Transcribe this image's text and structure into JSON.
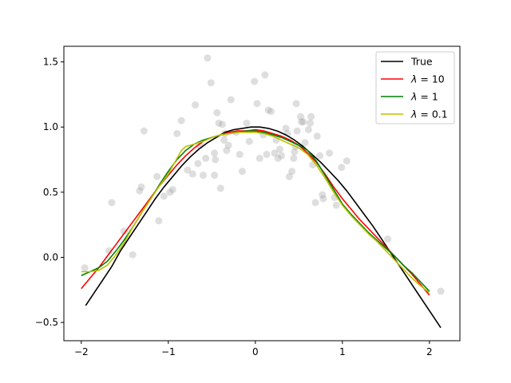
{
  "chart_data": {
    "type": "line",
    "title": "",
    "xlabel": "",
    "ylabel": "",
    "xlim": [
      -2.2,
      2.35
    ],
    "ylim": [
      -0.64,
      1.62
    ],
    "xticks": [
      -2,
      -1,
      0,
      1,
      2
    ],
    "xtick_labels": [
      "−2",
      "−1",
      "0",
      "1",
      "2"
    ],
    "yticks": [
      -0.5,
      0.0,
      0.5,
      1.0,
      1.5
    ],
    "ytick_labels": [
      "−0.5",
      "0.0",
      "0.5",
      "1.0",
      "1.5"
    ],
    "grid": false,
    "legend": {
      "position": "top-right"
    },
    "scatter": {
      "color": "#a0a0a0",
      "opacity": 0.35,
      "x": [
        2.13,
        1.52,
        1.05,
        0.99,
        0.93,
        0.91,
        0.78,
        0.77,
        0.74,
        0.71,
        0.69,
        0.66,
        0.64,
        0.63,
        0.61,
        0.55,
        0.53,
        0.52,
        0.48,
        0.47,
        0.46,
        0.45,
        0.44,
        0.42,
        0.39,
        0.37,
        0.35,
        0.3,
        0.28,
        0.26,
        0.24,
        0.22,
        0.18,
        0.15,
        0.13,
        0.11,
        0.09,
        0.05,
        0.02,
        -0.01,
        -0.07,
        -0.1,
        -0.15,
        -0.18,
        -0.22,
        -0.28,
        -0.31,
        -0.33,
        -0.35,
        -0.36,
        -0.38,
        -0.4,
        -0.42,
        -0.44,
        -0.46,
        -0.47,
        -0.51,
        -0.55,
        -0.64,
        -0.66,
        -0.72,
        -0.78,
        -0.85,
        -0.9,
        -0.98,
        -1.05,
        -1.13,
        -1.28,
        -1.31,
        -1.33,
        -1.41,
        -1.51,
        -1.65,
        -1.68,
        -1.96
      ],
      "y": [
        -0.26,
        0.14,
        0.74,
        0.69,
        0.4,
        0.46,
        0.45,
        0.48,
        0.78,
        0.93,
        0.42,
        0.71,
        1.08,
        1.03,
        0.98,
        1.04,
        1.04,
        1.08,
        0.97,
        1.18,
        0.85,
        0.81,
        0.76,
        0.66,
        0.62,
        0.95,
        0.99,
        0.78,
        0.83,
        0.76,
        0.9,
        0.8,
        1.12,
        1.13,
        0.79,
        1.4,
        0.94,
        0.76,
        1.18,
        1.35,
        0.89,
        1.03,
        0.66,
        0.79,
        0.96,
        1.21,
        0.86,
        0.82,
        0.95,
        0.9,
        1.02,
        0.53,
        1.03,
        1.11,
        0.75,
        0.63,
        1.34,
        1.53,
        0.86,
        0.72,
        0.64,
        0.67,
        1.05,
        0.95,
        0.5,
        0.47,
        0.62,
        0.97,
        0.54,
        0.51,
        0.02,
        0.2,
        0.42,
        0.05,
        -0.08
      ],
      "x_extra": [
        -0.57,
        -0.69,
        -0.6,
        -1.11,
        -0.95,
        -0.47,
        0.57,
        0.85
      ],
      "y_extra": [
        0.76,
        1.17,
        0.63,
        0.28,
        0.52,
        0.8,
        0.88,
        0.8
      ]
    },
    "series": [
      {
        "name": "True",
        "color": "#000000",
        "x": [
          -1.95,
          -1.85,
          -1.75,
          -1.65,
          -1.55,
          -1.45,
          -1.35,
          -1.25,
          -1.15,
          -1.05,
          -0.95,
          -0.85,
          -0.75,
          -0.65,
          -0.55,
          -0.45,
          -0.35,
          -0.25,
          -0.15,
          -0.05,
          0.0,
          0.05,
          0.15,
          0.25,
          0.35,
          0.45,
          0.55,
          0.65,
          0.75,
          0.85,
          0.95,
          1.05,
          1.15,
          1.25,
          1.35,
          1.45,
          1.55,
          1.65,
          1.75,
          1.85,
          1.95,
          2.05,
          2.13
        ],
        "y": [
          -0.37,
          -0.27,
          -0.17,
          -0.07,
          0.05,
          0.15,
          0.25,
          0.35,
          0.45,
          0.54,
          0.62,
          0.7,
          0.77,
          0.83,
          0.88,
          0.92,
          0.96,
          0.98,
          0.99,
          1.0,
          1.0,
          1.0,
          0.99,
          0.97,
          0.94,
          0.9,
          0.85,
          0.79,
          0.73,
          0.66,
          0.59,
          0.51,
          0.42,
          0.33,
          0.24,
          0.14,
          0.04,
          -0.06,
          -0.16,
          -0.26,
          -0.36,
          -0.46,
          -0.54
        ]
      },
      {
        "name": "λ = 10",
        "label_symbol": "λ",
        "label_value": " = 10",
        "color": "#ff0000",
        "x": [
          -2.0,
          -1.9,
          -1.8,
          -1.7,
          -1.6,
          -1.5,
          -1.4,
          -1.3,
          -1.2,
          -1.1,
          -1.0,
          -0.9,
          -0.8,
          -0.7,
          -0.6,
          -0.5,
          -0.4,
          -0.3,
          -0.2,
          -0.1,
          0.0,
          0.1,
          0.2,
          0.3,
          0.4,
          0.5,
          0.6,
          0.7,
          0.8,
          0.9,
          1.0,
          1.1,
          1.2,
          1.3,
          1.4,
          1.5,
          1.6,
          1.7,
          1.8,
          1.9,
          2.0
        ],
        "y": [
          -0.24,
          -0.16,
          -0.08,
          0.01,
          0.1,
          0.19,
          0.28,
          0.37,
          0.46,
          0.55,
          0.63,
          0.71,
          0.78,
          0.84,
          0.89,
          0.92,
          0.94,
          0.96,
          0.97,
          0.97,
          0.98,
          0.97,
          0.95,
          0.93,
          0.9,
          0.86,
          0.8,
          0.73,
          0.64,
          0.54,
          0.45,
          0.37,
          0.29,
          0.22,
          0.15,
          0.08,
          0.01,
          -0.06,
          -0.13,
          -0.21,
          -0.29
        ]
      },
      {
        "name": "λ = 1",
        "label_symbol": "λ",
        "label_value": " = 1",
        "color": "#008000",
        "x": [
          -2.0,
          -1.9,
          -1.8,
          -1.7,
          -1.6,
          -1.5,
          -1.4,
          -1.3,
          -1.2,
          -1.1,
          -1.0,
          -0.9,
          -0.8,
          -0.7,
          -0.6,
          -0.5,
          -0.4,
          -0.3,
          -0.2,
          -0.1,
          0.0,
          0.1,
          0.2,
          0.3,
          0.4,
          0.5,
          0.6,
          0.7,
          0.8,
          0.9,
          1.0,
          1.1,
          1.2,
          1.3,
          1.4,
          1.5,
          1.6,
          1.7,
          1.8,
          1.9,
          2.0
        ],
        "y": [
          -0.14,
          -0.11,
          -0.08,
          -0.03,
          0.05,
          0.14,
          0.24,
          0.35,
          0.45,
          0.56,
          0.66,
          0.75,
          0.82,
          0.87,
          0.9,
          0.92,
          0.94,
          0.95,
          0.96,
          0.97,
          0.97,
          0.96,
          0.94,
          0.92,
          0.89,
          0.86,
          0.82,
          0.74,
          0.63,
          0.52,
          0.41,
          0.33,
          0.26,
          0.19,
          0.13,
          0.07,
          0.01,
          -0.06,
          -0.12,
          -0.19,
          -0.26
        ]
      },
      {
        "name": "λ = 0.1",
        "label_symbol": "λ",
        "label_value": " = 0.1",
        "color": "#bfbf00",
        "x": [
          -2.0,
          -1.9,
          -1.8,
          -1.7,
          -1.6,
          -1.5,
          -1.4,
          -1.3,
          -1.2,
          -1.1,
          -1.0,
          -0.9,
          -0.85,
          -0.8,
          -0.7,
          -0.6,
          -0.5,
          -0.4,
          -0.3,
          -0.2,
          -0.1,
          0.0,
          0.1,
          0.2,
          0.3,
          0.4,
          0.5,
          0.6,
          0.7,
          0.8,
          0.9,
          1.0,
          1.1,
          1.2,
          1.3,
          1.4,
          1.5,
          1.6,
          1.7,
          1.8,
          1.9,
          2.0
        ],
        "y": [
          -0.11,
          -0.11,
          -0.1,
          -0.06,
          0.02,
          0.12,
          0.24,
          0.35,
          0.45,
          0.55,
          0.64,
          0.76,
          0.82,
          0.85,
          0.87,
          0.89,
          0.92,
          0.94,
          0.95,
          0.96,
          0.96,
          0.96,
          0.95,
          0.93,
          0.9,
          0.87,
          0.84,
          0.79,
          0.71,
          0.61,
          0.5,
          0.4,
          0.32,
          0.25,
          0.18,
          0.12,
          0.05,
          -0.02,
          -0.09,
          -0.16,
          -0.22,
          -0.27
        ]
      }
    ]
  }
}
